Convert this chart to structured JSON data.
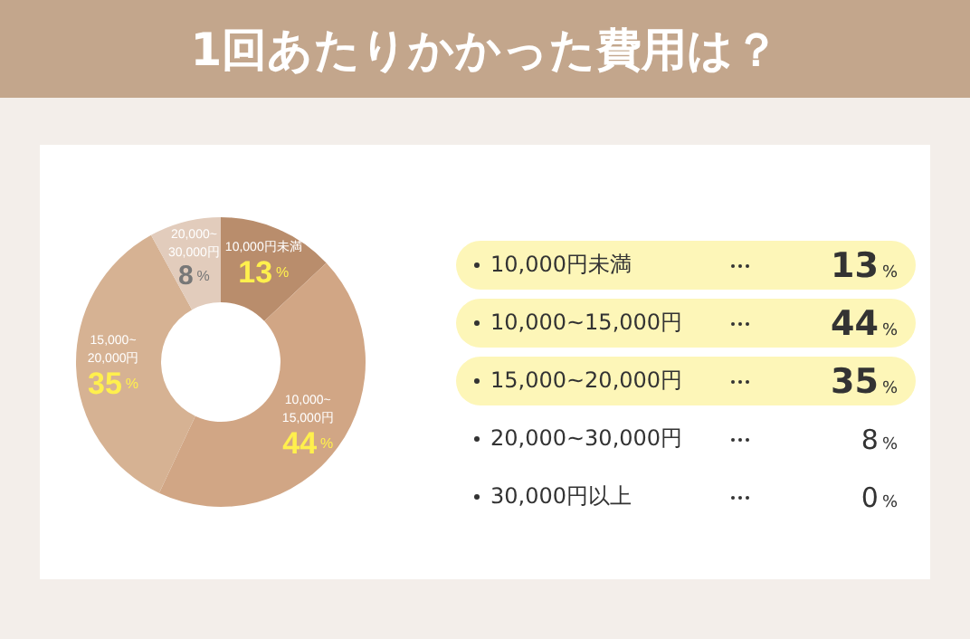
{
  "chart_data": {
    "type": "donut",
    "title": "1回あたりかかった費用は？",
    "categories": [
      "10,000円未満",
      "10,000~15,000円",
      "15,000~20,000円",
      "20,000~30,000円",
      "30,000円以上"
    ],
    "values": [
      13,
      44,
      35,
      8,
      0
    ],
    "colors": [
      "#b98d6c",
      "#d1a685",
      "#d6b293",
      "#e2ccbc",
      "#ead9cc"
    ],
    "value_labels": [
      "13%",
      "44%",
      "35%",
      "8%",
      "0%"
    ],
    "legend": "right"
  }
}
